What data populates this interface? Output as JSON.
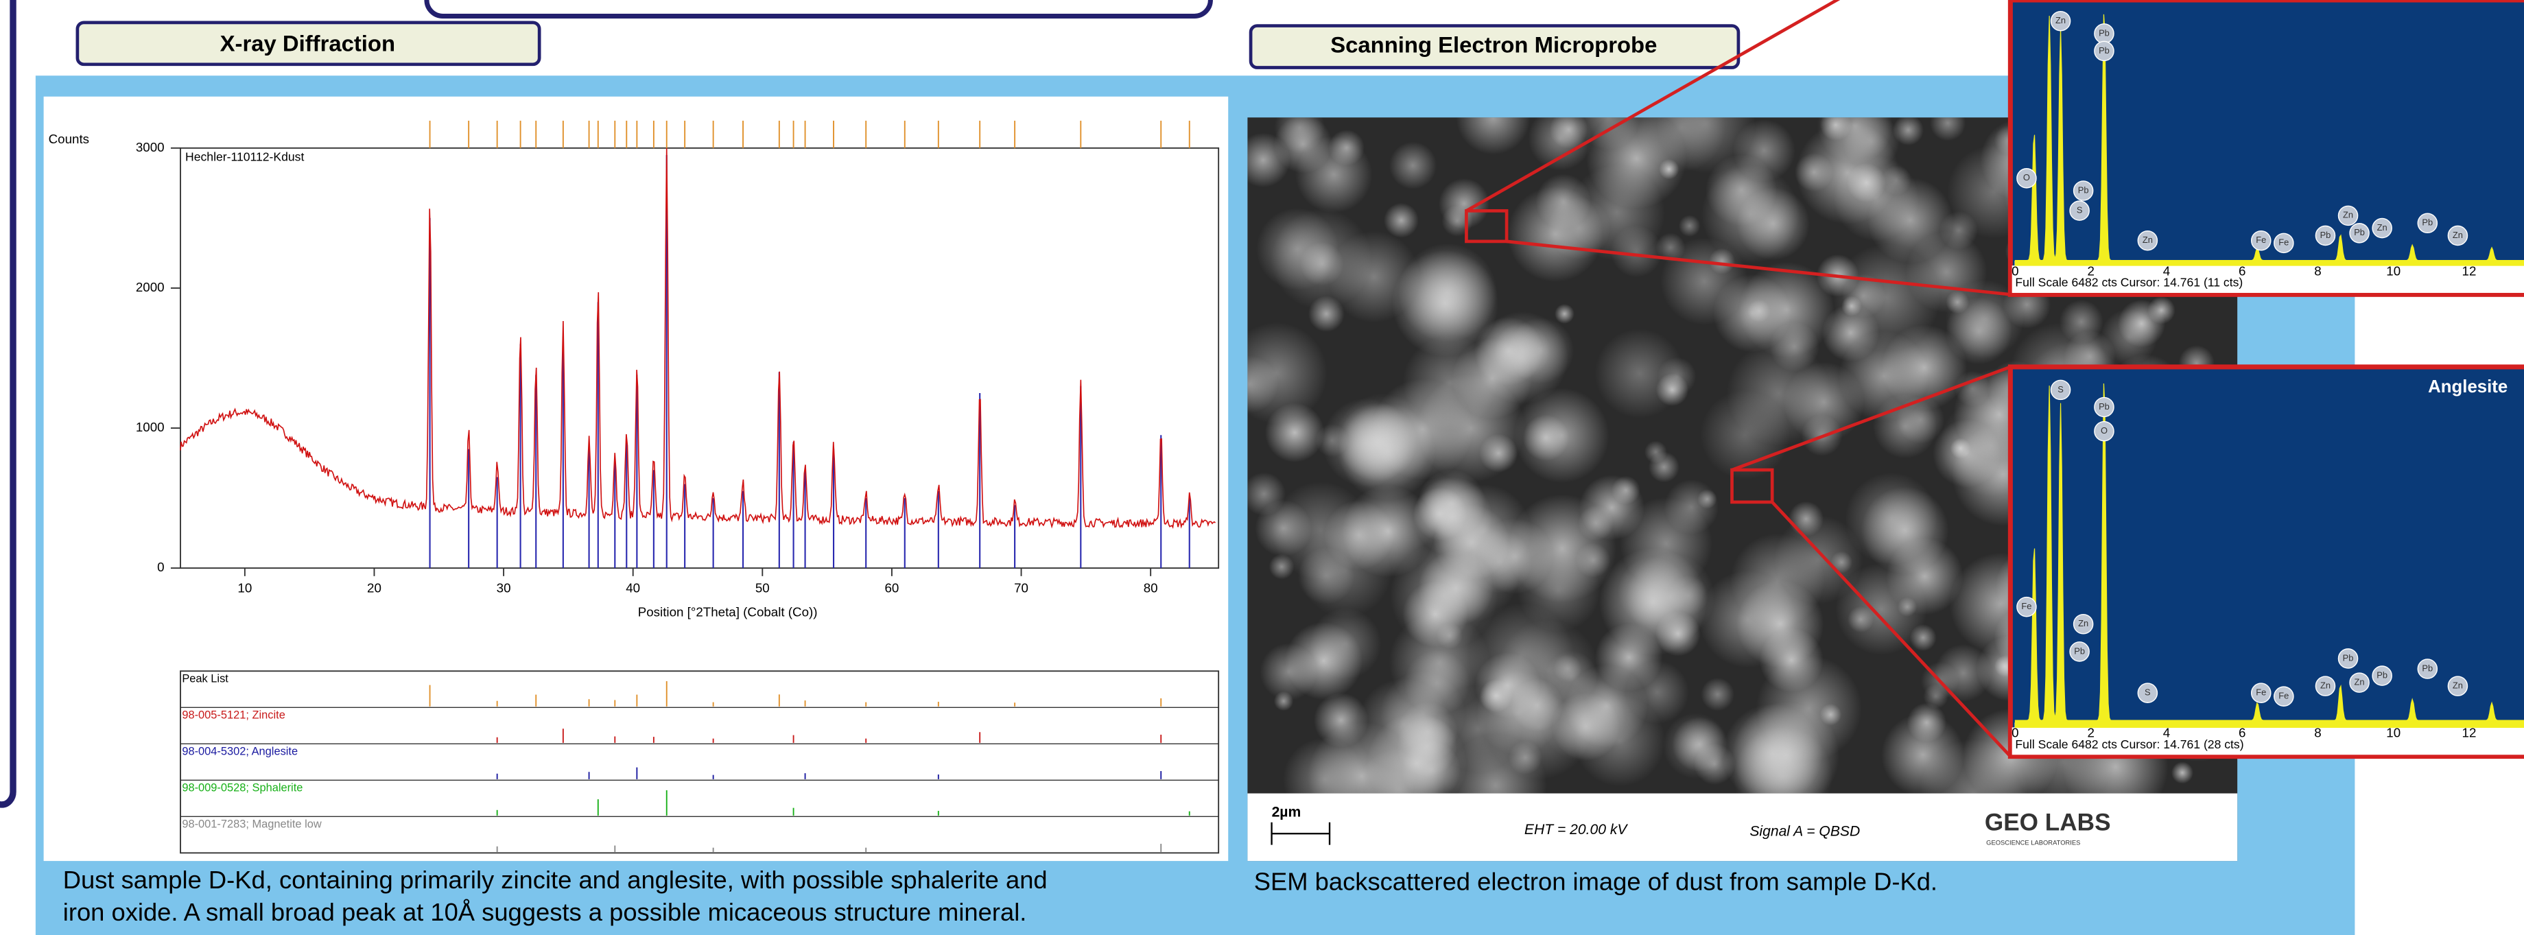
{
  "header": {
    "xrd_title": "X-ray Diffraction",
    "sem_title": "Scanning Electron Microprobe"
  },
  "xrd": {
    "y_label": "Counts",
    "sample": "Hechler-110112-Kdust",
    "x_label": "Position [°2Theta] (Cobalt (Co))",
    "yticks": [
      0,
      1000,
      2000,
      3000
    ],
    "xticks": [
      10,
      20,
      30,
      40,
      50,
      60,
      70,
      80
    ],
    "peak_list": [
      "Peak List",
      "98-005-5121; Zincite",
      "98-004-5302; Anglesite",
      "98-009-0528; Sphalerite",
      "98-001-7283; Magnetite low"
    ]
  },
  "sem": {
    "scale": "2µm",
    "eht": "EHT = 20.00 kV",
    "signal": "Signal A = QBSD",
    "logo": "GEO LABS",
    "logo_sub": "GEOSCIENCE LABORATORIES"
  },
  "spectra": [
    {
      "ticks": [
        0,
        2,
        4,
        6,
        8,
        10,
        12
      ],
      "footer": "Full Scale 6482 cts Cursor: 14.761  (11 cts)",
      "elements": [
        "Zn",
        "Pb",
        "Pb",
        "O",
        "Pb",
        "S",
        "Zn",
        "Fe",
        "Fe",
        "Pb",
        "Zn",
        "Pb",
        "Zn",
        "Pb",
        "Zn"
      ]
    },
    {
      "name": "Anglesite",
      "ticks": [
        0,
        2,
        4,
        6,
        8,
        10,
        12
      ],
      "footer": "Full Scale 6482 cts Cursor: 14.761  (28 cts)",
      "elements": [
        "S",
        "Pb",
        "O",
        "Fe",
        "Zn",
        "Pb",
        "S",
        "Fe",
        "Fe",
        "Zn",
        "Pb",
        "Zn",
        "Pb",
        "Pb",
        "Zn"
      ]
    }
  ],
  "captions": {
    "xrd": [
      "Dust sample D-Kd, containing primarily zincite and anglesite, with possible sphalerite and",
      "iron oxide.  A small broad peak at 10Å suggests a possible micaceous structure mineral."
    ],
    "sem": "SEM backscattered electron image of dust from sample D-Kd."
  }
}
